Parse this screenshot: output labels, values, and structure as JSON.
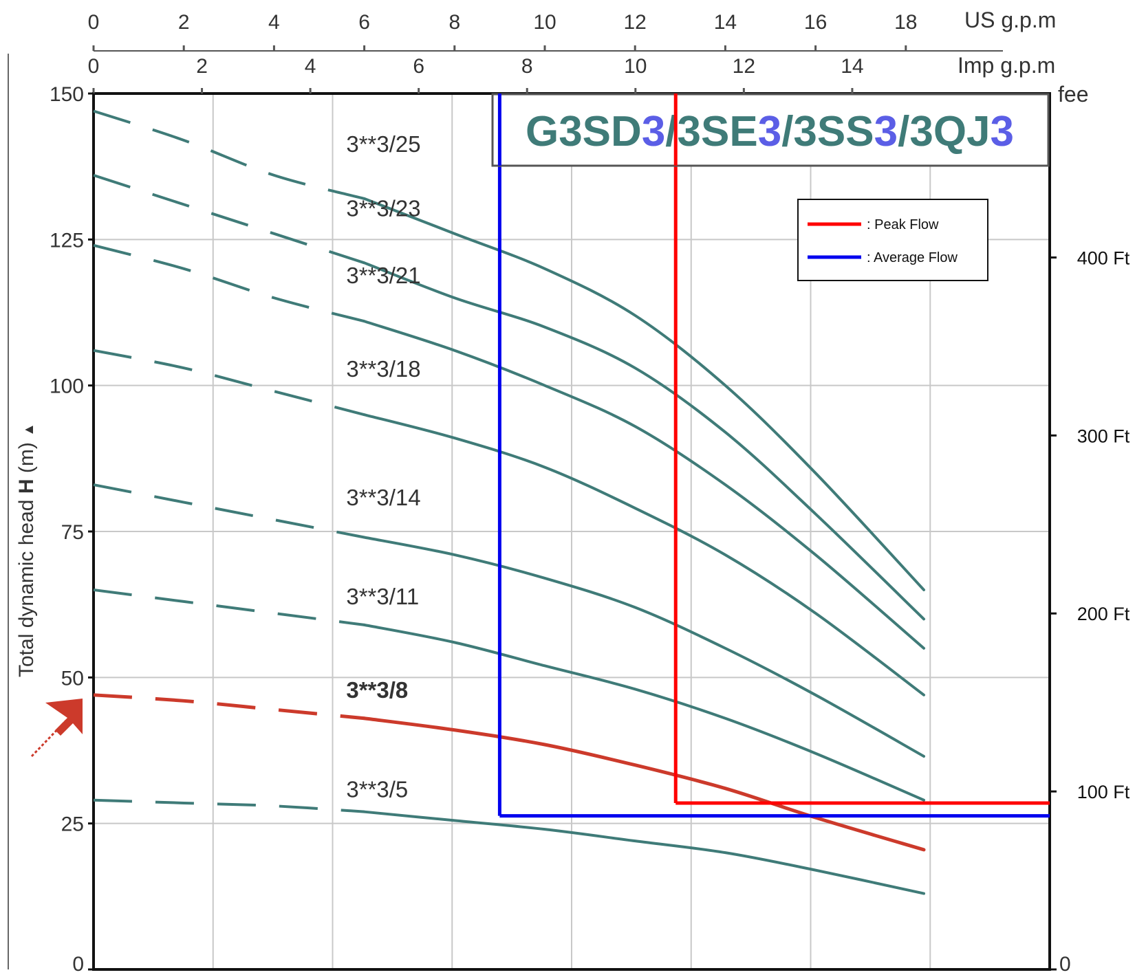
{
  "chart_data": {
    "type": "line",
    "title_parts": [
      "G3SD",
      "3",
      "/3SE",
      "3",
      "/3SS",
      "3",
      "/3QJ",
      "3"
    ],
    "title_colors": [
      "#3f7b78",
      "#5b5ee6"
    ],
    "ylabel": "Total dynamic head",
    "ylabel_bold": "H",
    "ylabel_unit": "(m)",
    "ylabel_arrow": "▲",
    "ylim": [
      0,
      150
    ],
    "yticks": [
      "0",
      "25",
      "50",
      "75",
      "100",
      "125",
      "150"
    ],
    "xlim_us_gpm": [
      0,
      21
    ],
    "top_axis": {
      "unit": "US g.p.m",
      "ticks": [
        "0",
        "2",
        "4",
        "6",
        "8",
        "10",
        "12",
        "14",
        "16",
        "18"
      ]
    },
    "second_axis": {
      "unit": "Imp g.p.m",
      "ticks": [
        "0",
        "2",
        "4",
        "6",
        "8",
        "10",
        "12",
        "14"
      ]
    },
    "right_axis": {
      "unit": "fee",
      "ticks": [
        "0",
        "100 Ft",
        "200 Ft",
        "300 Ft",
        "400 Ft"
      ]
    },
    "grid": true,
    "series": [
      {
        "name": "3**3/25",
        "label_at": [
          5.6,
          140
        ],
        "color": "#3f7b78",
        "x": [
          0,
          2,
          4,
          6,
          8,
          10,
          12,
          14,
          16,
          18.4
        ],
        "y": [
          147,
          142,
          136,
          132,
          126,
          120,
          112,
          100,
          85,
          65
        ]
      },
      {
        "name": "3**3/23",
        "label_at": [
          5.6,
          129
        ],
        "color": "#3f7b78",
        "x": [
          0,
          2,
          4,
          6,
          8,
          10,
          12,
          14,
          16,
          18.4
        ],
        "y": [
          136,
          131,
          126,
          121,
          115,
          110,
          103,
          92,
          78,
          60
        ]
      },
      {
        "name": "3**3/21",
        "label_at": [
          5.6,
          117.5
        ],
        "color": "#3f7b78",
        "x": [
          0,
          2,
          4,
          6,
          8,
          10,
          12,
          14,
          16,
          18.4
        ],
        "y": [
          124,
          120,
          115,
          111,
          106,
          100,
          93,
          83,
          71,
          55
        ]
      },
      {
        "name": "3**3/18",
        "label_at": [
          5.6,
          101.5
        ],
        "color": "#3f7b78",
        "x": [
          0,
          2,
          4,
          6,
          8,
          10,
          12,
          14,
          16,
          18.4
        ],
        "y": [
          106,
          103,
          99,
          95,
          91,
          86,
          79,
          71,
          61,
          47
        ]
      },
      {
        "name": "3**3/14",
        "label_at": [
          5.6,
          79.5
        ],
        "color": "#3f7b78",
        "x": [
          0,
          2,
          4,
          6,
          8,
          10,
          12,
          14,
          16,
          18.4
        ],
        "y": [
          83,
          80,
          77,
          74,
          71,
          67,
          62,
          55,
          47,
          36.5
        ]
      },
      {
        "name": "3**3/11",
        "label_at": [
          5.6,
          62.5
        ],
        "color": "#3f7b78",
        "x": [
          0,
          2,
          4,
          6,
          8,
          10,
          12,
          14,
          16,
          18.4
        ],
        "y": [
          65,
          63,
          61,
          59,
          56,
          52,
          48,
          43,
          37,
          29
        ]
      },
      {
        "name": "3**3/8",
        "label_at": [
          5.6,
          46.5
        ],
        "color": "#cc3a2b",
        "highlight": true,
        "x": [
          0,
          2,
          4,
          6,
          8,
          10,
          12,
          14,
          16,
          18.4
        ],
        "y": [
          47,
          46,
          44.5,
          43,
          41,
          38.5,
          35,
          31,
          26,
          20.5
        ]
      },
      {
        "name": "3**3/5",
        "label_at": [
          5.6,
          29.5
        ],
        "color": "#3f7b78",
        "x": [
          0,
          2,
          4,
          6,
          8,
          10,
          12,
          14,
          16,
          18.4
        ],
        "y": [
          29,
          28.5,
          28,
          27,
          25.5,
          24,
          22,
          20,
          17,
          13
        ]
      }
    ],
    "dashed_until_x": 5,
    "reference_lines": [
      {
        "name": "Peak Flow",
        "color": "#ff0000",
        "x": 12.9,
        "y": 28.5
      },
      {
        "name": "Average Flow",
        "color": "#0000ee",
        "x": 9.0,
        "y": 26.3
      }
    ],
    "legend": {
      "position": "top-right",
      "items": [
        {
          "label": ": Peak Flow",
          "color": "#ff0000"
        },
        {
          "label": ": Average Flow",
          "color": "#0000ee"
        }
      ]
    },
    "arrow_color": "#cc3a2b"
  }
}
